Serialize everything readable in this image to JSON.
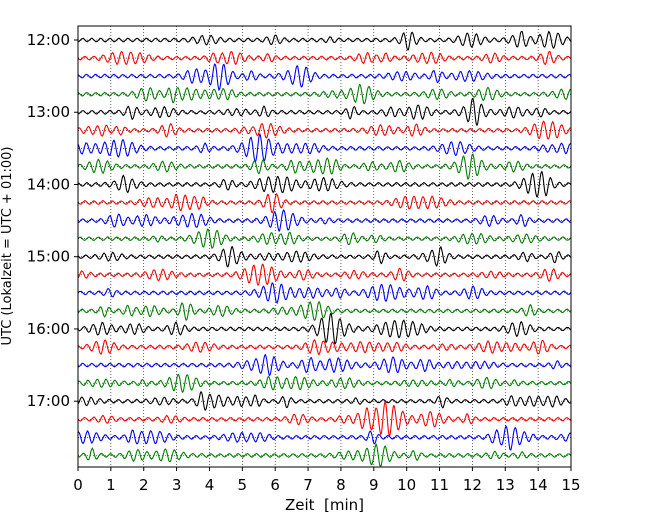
{
  "chart_data": {
    "type": "line",
    "title": "",
    "xlabel": "Zeit  [min]",
    "ylabel": "UTC (Lokalzeit = UTC + 01:00)",
    "xlim": [
      0,
      15
    ],
    "x_ticks": [
      "0",
      "1",
      "2",
      "3",
      "4",
      "5",
      "6",
      "7",
      "8",
      "9",
      "10",
      "11",
      "12",
      "13",
      "14",
      "15"
    ],
    "y_tick_labels": [
      "12:00",
      "13:00",
      "14:00",
      "15:00",
      "16:00",
      "17:00"
    ],
    "grid": true,
    "trace_count": 24,
    "trace_interval_minutes": 15,
    "trace_colors": [
      "#000000",
      "#ff0000",
      "#0000ff",
      "#008000"
    ],
    "series": [
      {
        "start": "12:00",
        "color": "#000000"
      },
      {
        "start": "12:15",
        "color": "#ff0000"
      },
      {
        "start": "12:30",
        "color": "#0000ff"
      },
      {
        "start": "12:45",
        "color": "#008000"
      },
      {
        "start": "13:00",
        "color": "#000000"
      },
      {
        "start": "13:15",
        "color": "#ff0000"
      },
      {
        "start": "13:30",
        "color": "#0000ff"
      },
      {
        "start": "13:45",
        "color": "#008000"
      },
      {
        "start": "14:00",
        "color": "#000000"
      },
      {
        "start": "14:15",
        "color": "#ff0000"
      },
      {
        "start": "14:30",
        "color": "#0000ff"
      },
      {
        "start": "14:45",
        "color": "#008000"
      },
      {
        "start": "15:00",
        "color": "#000000"
      },
      {
        "start": "15:15",
        "color": "#ff0000"
      },
      {
        "start": "15:30",
        "color": "#0000ff"
      },
      {
        "start": "15:45",
        "color": "#008000"
      },
      {
        "start": "16:00",
        "color": "#000000"
      },
      {
        "start": "16:15",
        "color": "#ff0000"
      },
      {
        "start": "16:30",
        "color": "#0000ff"
      },
      {
        "start": "16:45",
        "color": "#008000"
      },
      {
        "start": "17:00",
        "color": "#000000"
      },
      {
        "start": "17:15",
        "color": "#ff0000"
      },
      {
        "start": "17:30",
        "color": "#0000ff"
      },
      {
        "start": "17:45",
        "color": "#008000"
      }
    ]
  }
}
